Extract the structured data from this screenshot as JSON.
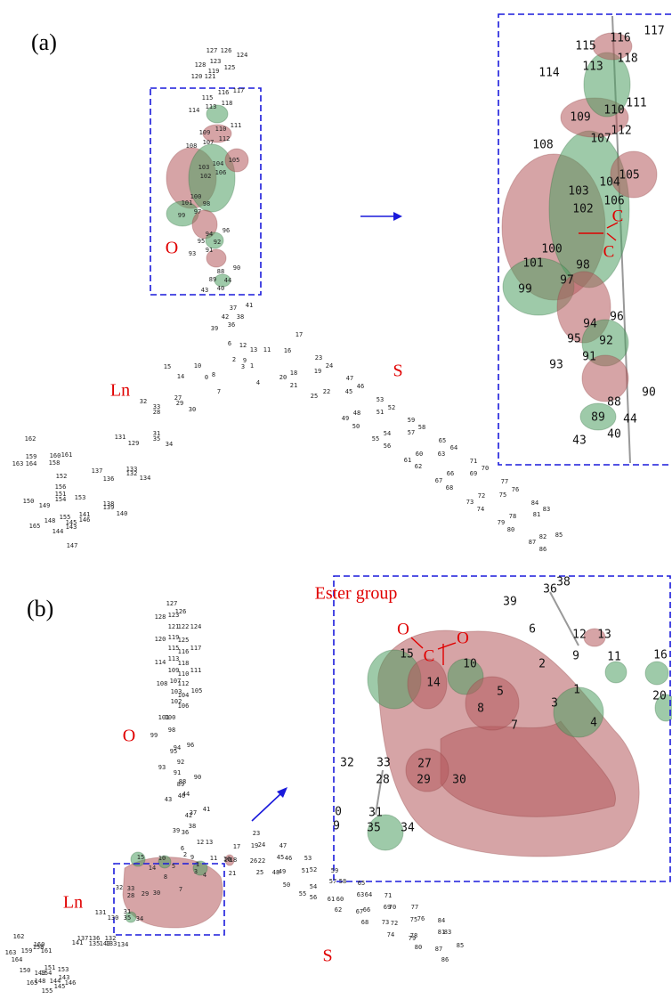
{
  "panels": [
    {
      "label": "(a)",
      "regions": [
        "O",
        "Ln",
        "S"
      ],
      "atoms": [
        "127",
        "126",
        "128",
        "123",
        "124",
        "121",
        "125",
        "120",
        "119",
        "117",
        "116",
        "115",
        "118",
        "114",
        "113",
        "111",
        "110",
        "109",
        "112",
        "108",
        "107",
        "105",
        "104",
        "103",
        "102",
        "106",
        "100",
        "101",
        "98",
        "99",
        "97",
        "96",
        "94",
        "95",
        "92",
        "91",
        "93",
        "90",
        "88",
        "89",
        "44",
        "43",
        "40",
        "37",
        "41",
        "38",
        "42",
        "36",
        "39",
        "6",
        "12",
        "13",
        "11",
        "17",
        "16",
        "2",
        "9",
        "3",
        "1",
        "4",
        "15",
        "10",
        "14",
        "0",
        "8",
        "7",
        "23",
        "24",
        "19",
        "18",
        "20",
        "21",
        "22",
        "25",
        "47",
        "46",
        "45",
        "48",
        "49",
        "50",
        "53",
        "52",
        "51",
        "54",
        "55",
        "56",
        "59",
        "58",
        "57",
        "60",
        "61",
        "62",
        "65",
        "64",
        "63",
        "66",
        "67",
        "68",
        "71",
        "70",
        "69",
        "72",
        "73",
        "74",
        "77",
        "76",
        "75",
        "78",
        "79",
        "80",
        "84",
        "83",
        "81",
        "87",
        "82",
        "85",
        "86",
        "32",
        "33",
        "28",
        "29",
        "27",
        "30",
        "31",
        "35",
        "34",
        "131",
        "129",
        "137",
        "136",
        "133",
        "132",
        "134",
        "138",
        "139",
        "140",
        "141",
        "146",
        "143",
        "145",
        "144",
        "147",
        "148",
        "149",
        "150",
        "151",
        "152",
        "153",
        "154",
        "155",
        "156",
        "158",
        "159",
        "160",
        "161",
        "162",
        "163",
        "164",
        "165"
      ],
      "zoom": {
        "annotation": [
          "C",
          "C"
        ],
        "atoms": [
          "116",
          "117",
          "115",
          "118",
          "114",
          "113",
          "111",
          "110",
          "109",
          "112",
          "108",
          "107",
          "105",
          "104",
          "103",
          "106",
          "102",
          "100",
          "101",
          "98",
          "99",
          "97",
          "96",
          "94",
          "95",
          "92",
          "91",
          "93",
          "90",
          "88",
          "89",
          "44",
          "43",
          "40"
        ]
      }
    },
    {
      "label": "(b)",
      "regions": [
        "O",
        "Ln",
        "S"
      ],
      "atoms": [
        "127",
        "126",
        "128",
        "123",
        "121",
        "122",
        "124",
        "120",
        "119",
        "125",
        "117",
        "115",
        "116",
        "114",
        "113",
        "118",
        "111",
        "109",
        "110",
        "112",
        "108",
        "107",
        "105",
        "103",
        "104",
        "106",
        "102",
        "100",
        "101",
        "98",
        "99",
        "96",
        "94",
        "95",
        "92",
        "93",
        "91",
        "90",
        "88",
        "89",
        "44",
        "43",
        "40",
        "37",
        "41",
        "42",
        "38",
        "39",
        "36",
        "6",
        "12",
        "13",
        "17",
        "23",
        "24",
        "19",
        "16",
        "22",
        "20",
        "21",
        "25",
        "26",
        "47",
        "46",
        "45",
        "49",
        "48",
        "50",
        "53",
        "52",
        "51",
        "54",
        "55",
        "56",
        "59",
        "58",
        "57",
        "60",
        "61",
        "62",
        "63",
        "64",
        "65",
        "66",
        "67",
        "68",
        "69",
        "70",
        "71",
        "72",
        "73",
        "74",
        "75",
        "76",
        "77",
        "78",
        "79",
        "80",
        "81",
        "83",
        "84",
        "85",
        "86",
        "87",
        "15",
        "10",
        "14",
        "8",
        "5",
        "2",
        "9",
        "11",
        "1",
        "3",
        "4",
        "7",
        "18",
        "32",
        "33",
        "28",
        "29",
        "30",
        "31",
        "35",
        "34",
        "131",
        "130",
        "132",
        "133",
        "134",
        "137",
        "136",
        "135",
        "140",
        "141",
        "162",
        "160",
        "161",
        "159",
        "163",
        "164",
        "158",
        "150",
        "151",
        "153",
        "149",
        "154",
        "143",
        "146",
        "144",
        "148",
        "165",
        "145",
        "155"
      ],
      "zoom": {
        "title": "Ester group",
        "annotation": [
          "O",
          "C",
          "O"
        ],
        "atoms": [
          "39",
          "36",
          "38",
          "12",
          "13",
          "6",
          "2",
          "9",
          "11",
          "16",
          "15",
          "10",
          "14",
          "5",
          "8",
          "1",
          "3",
          "20",
          "4",
          "7",
          "32",
          "33",
          "28",
          "27",
          "29",
          "30",
          "0",
          "31",
          "9",
          "35",
          "34"
        ]
      }
    }
  ]
}
